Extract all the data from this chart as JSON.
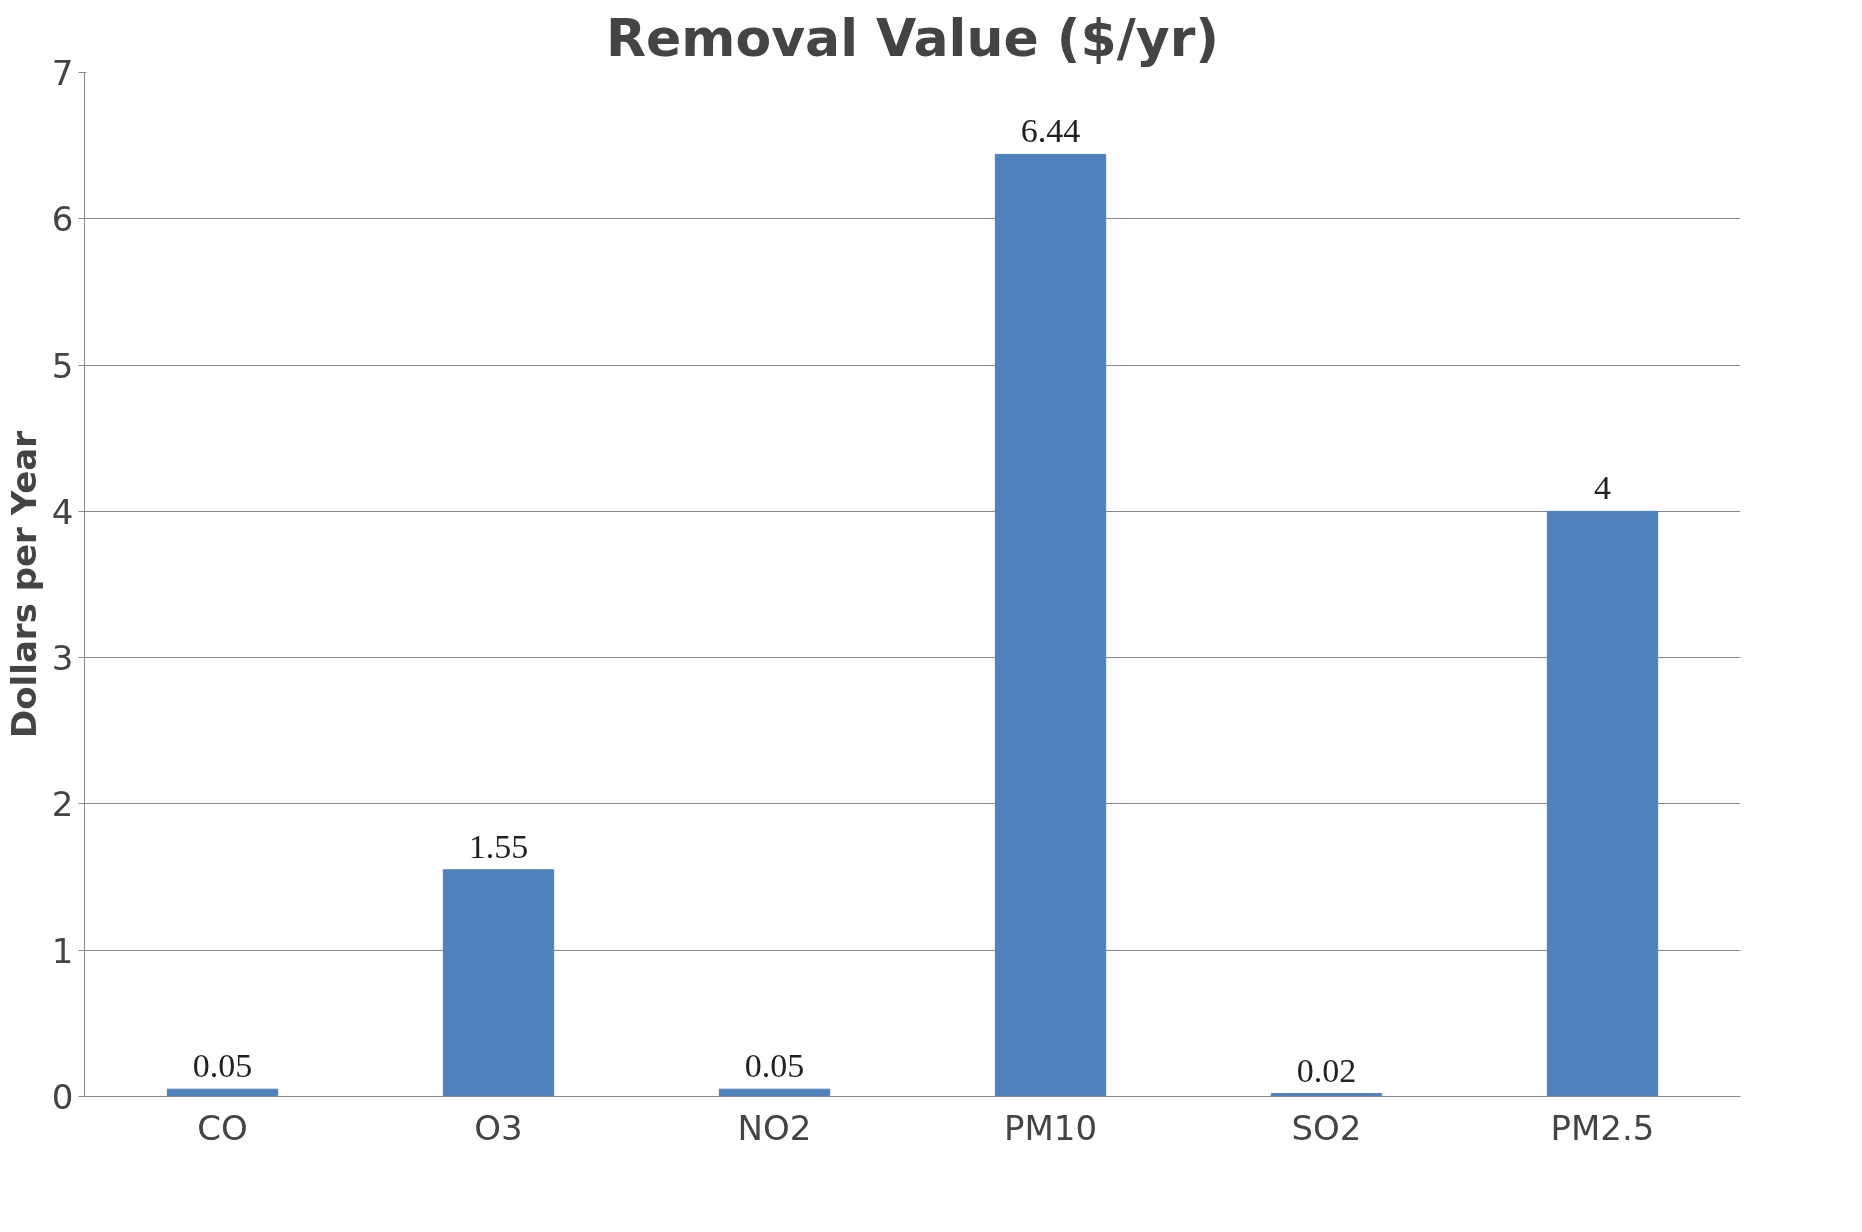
{
  "chart_data": {
    "type": "bar",
    "title": "Removal Value ($/yr)",
    "ylabel": "Dollars per Year",
    "categories": [
      "CO",
      "O3",
      "NO2",
      "PM10",
      "SO2",
      "PM2.5"
    ],
    "values": [
      0.05,
      1.55,
      0.05,
      6.44,
      0.02,
      4
    ],
    "color": "#4f81bd",
    "ylim": [
      0,
      7
    ],
    "yticks": [
      0,
      1,
      2,
      3,
      4,
      5,
      6,
      7
    ],
    "grid": "y",
    "data_labels": true
  }
}
